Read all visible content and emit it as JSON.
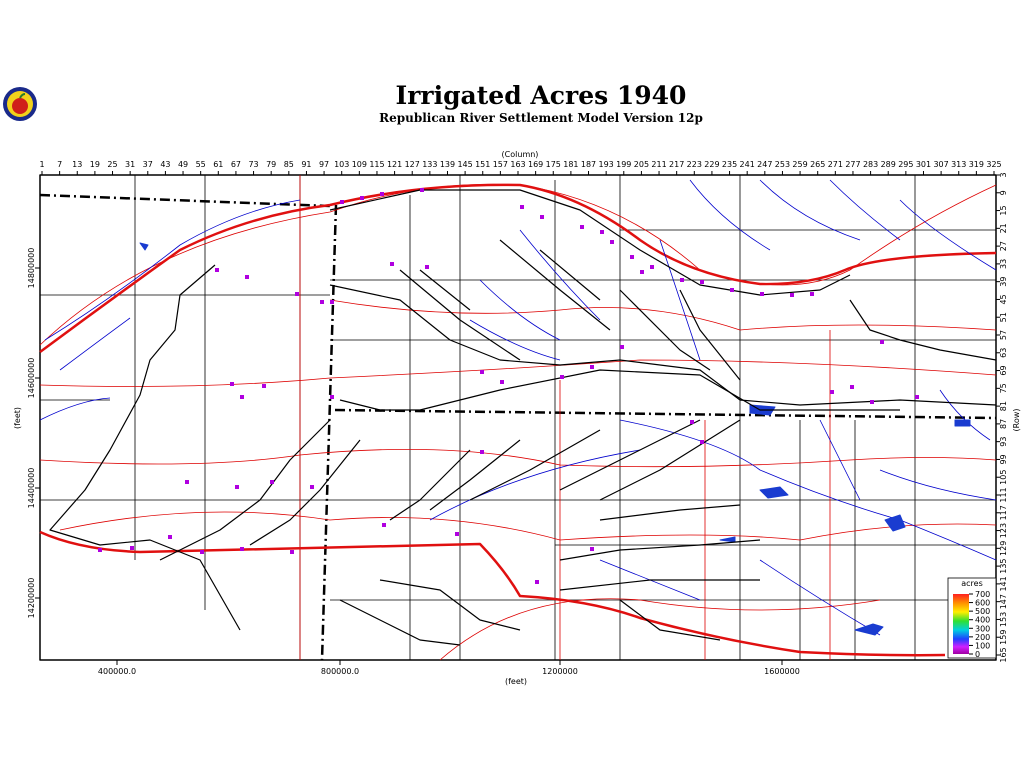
{
  "header": {
    "title": "Irrigated Acres 1940",
    "subtitle": "Republican River Settlement Model Version 12p"
  },
  "top_axis": {
    "label": "(Column)",
    "ticks": [
      "1",
      "7",
      "13",
      "19",
      "25",
      "31",
      "37",
      "43",
      "49",
      "55",
      "61",
      "67",
      "73",
      "79",
      "85",
      "91",
      "97",
      "103",
      "109",
      "115",
      "121",
      "127",
      "133",
      "139",
      "145",
      "151",
      "157",
      "163",
      "169",
      "175",
      "181",
      "187",
      "193",
      "199",
      "205",
      "211",
      "217",
      "223",
      "229",
      "235",
      "241",
      "247",
      "253",
      "259",
      "265",
      "271",
      "277",
      "283",
      "289",
      "295",
      "301",
      "307",
      "313",
      "319",
      "325"
    ]
  },
  "right_axis": {
    "label": "(Row)",
    "ticks": [
      "3",
      "9",
      "15",
      "21",
      "27",
      "33",
      "39",
      "45",
      "51",
      "57",
      "63",
      "69",
      "75",
      "81",
      "87",
      "93",
      "99",
      "105",
      "111",
      "117",
      "123",
      "129",
      "135",
      "141",
      "147",
      "153",
      "159",
      "165"
    ]
  },
  "bottom_axis": {
    "label": "(feet)",
    "ticks": [
      "400000.0",
      "800000.0",
      "1200000",
      "1600000"
    ]
  },
  "left_axis": {
    "label": "(feet)",
    "ticks": [
      "14800000",
      "14600000",
      "14400000",
      "14200000"
    ]
  },
  "legend": {
    "title": "acres",
    "labels": [
      "700",
      "600",
      "500",
      "400",
      "300",
      "200",
      "100",
      "0"
    ]
  }
}
